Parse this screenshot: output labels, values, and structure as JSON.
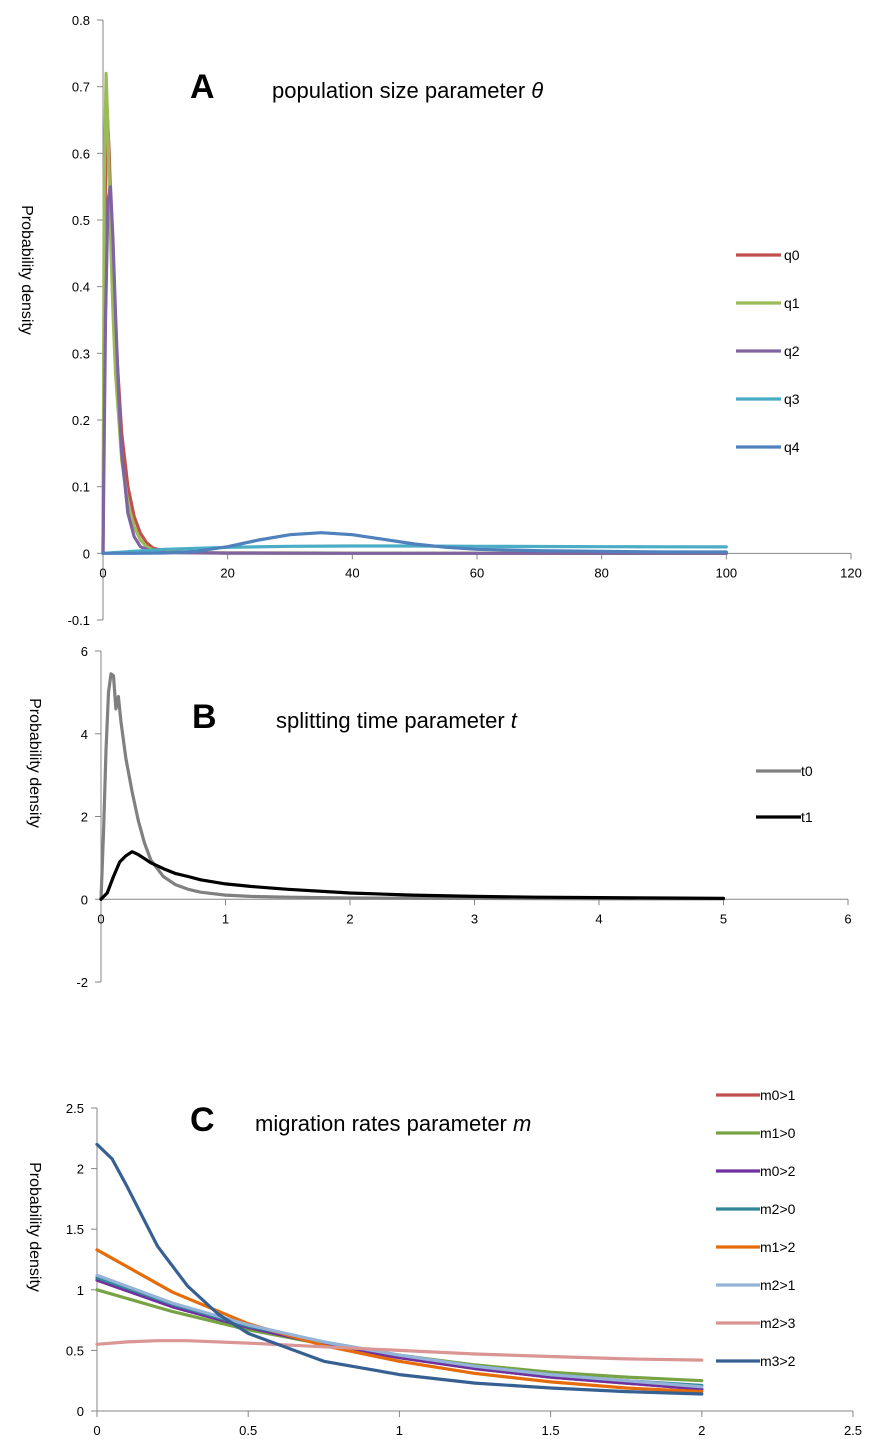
{
  "chart_data": [
    {
      "type": "line",
      "panel_letter": "A",
      "title_text": "population size parameter ",
      "title_symbol": "θ",
      "xlabel": "",
      "ylabel": "Probability density",
      "xlim": [
        0,
        120
      ],
      "ylim": [
        -0.1,
        0.8
      ],
      "xticks": [
        0,
        20,
        40,
        60,
        80,
        100,
        120
      ],
      "yticks": [
        -0.1,
        0,
        0.1,
        0.2,
        0.3,
        0.4,
        0.5,
        0.6,
        0.7,
        0.8
      ],
      "legend_position": "right",
      "series": [
        {
          "name": "q0",
          "color": "#c0504d",
          "x": [
            0,
            0.3,
            0.6,
            1,
            1.5,
            2,
            3,
            4,
            5,
            6,
            7,
            8,
            10,
            15,
            20,
            40,
            60,
            80,
            100
          ],
          "y": [
            0,
            0.5,
            0.68,
            0.6,
            0.45,
            0.33,
            0.18,
            0.1,
            0.055,
            0.03,
            0.016,
            0.008,
            0.003,
            0.001,
            0.0005,
            0.0003,
            0.0002,
            0.0001,
            0.0001
          ]
        },
        {
          "name": "q1",
          "color": "#9bbb59",
          "x": [
            0,
            0.2,
            0.5,
            0.8,
            1.2,
            1.6,
            2,
            3,
            4,
            5,
            6,
            7,
            8,
            10,
            15,
            20,
            40,
            60,
            80,
            100
          ],
          "y": [
            0,
            0.55,
            0.72,
            0.63,
            0.48,
            0.36,
            0.27,
            0.14,
            0.075,
            0.04,
            0.02,
            0.01,
            0.005,
            0.002,
            0.001,
            0.0005,
            0.0003,
            0.0002,
            0.0001,
            0.0001
          ]
        },
        {
          "name": "q2",
          "color": "#8064a2",
          "x": [
            0,
            0.4,
            0.8,
            1.2,
            1.6,
            2,
            2.5,
            3,
            4,
            5,
            6,
            8,
            10,
            20,
            40,
            60,
            80,
            100
          ],
          "y": [
            0,
            0.35,
            0.53,
            0.55,
            0.47,
            0.36,
            0.24,
            0.15,
            0.06,
            0.025,
            0.01,
            0.002,
            0.001,
            0.0003,
            0.0001,
            0.0001,
            0.0001,
            0.0001
          ]
        },
        {
          "name": "q3",
          "color": "#4bacc6",
          "x": [
            0,
            10,
            20,
            30,
            40,
            50,
            60,
            70,
            80,
            90,
            100
          ],
          "y": [
            0,
            0.006,
            0.009,
            0.0105,
            0.011,
            0.011,
            0.0105,
            0.0102,
            0.01,
            0.0098,
            0.0097
          ]
        },
        {
          "name": "q4",
          "color": "#4f81bd",
          "x": [
            0,
            5,
            10,
            15,
            20,
            25,
            30,
            35,
            40,
            45,
            50,
            55,
            60,
            70,
            80,
            90,
            100
          ],
          "y": [
            0,
            0,
            0.0005,
            0.003,
            0.01,
            0.02,
            0.028,
            0.031,
            0.028,
            0.021,
            0.014,
            0.009,
            0.006,
            0.004,
            0.003,
            0.002,
            0.002
          ]
        }
      ]
    },
    {
      "type": "line",
      "panel_letter": "B",
      "title_text": "splitting time parameter ",
      "title_symbol": "t",
      "xlabel": "",
      "ylabel": "Probability density",
      "xlim": [
        0,
        6
      ],
      "ylim": [
        -2,
        6
      ],
      "xticks": [
        0,
        1,
        2,
        3,
        4,
        5,
        6
      ],
      "yticks": [
        -2,
        0,
        2,
        4,
        6
      ],
      "legend_position": "right",
      "series": [
        {
          "name": "t0",
          "color": "#808080",
          "x": [
            0,
            0.02,
            0.04,
            0.06,
            0.08,
            0.1,
            0.12,
            0.14,
            0.16,
            0.2,
            0.25,
            0.3,
            0.35,
            0.4,
            0.5,
            0.6,
            0.7,
            0.8,
            1.0,
            1.2,
            1.5,
            2.0,
            3.0,
            4.0,
            5.0
          ],
          "y": [
            0,
            1.6,
            3.6,
            5.0,
            5.45,
            5.4,
            4.6,
            4.9,
            4.3,
            3.4,
            2.6,
            1.9,
            1.35,
            0.95,
            0.55,
            0.35,
            0.24,
            0.17,
            0.1,
            0.07,
            0.05,
            0.03,
            0.02,
            0.01,
            0.01
          ]
        },
        {
          "name": "t1",
          "color": "#000000",
          "x": [
            0,
            0.05,
            0.1,
            0.15,
            0.2,
            0.25,
            0.3,
            0.35,
            0.4,
            0.5,
            0.6,
            0.7,
            0.8,
            1.0,
            1.2,
            1.5,
            2.0,
            2.5,
            3.0,
            3.5,
            4.0,
            4.5,
            5.0
          ],
          "y": [
            0,
            0.15,
            0.55,
            0.9,
            1.05,
            1.15,
            1.08,
            0.98,
            0.88,
            0.74,
            0.62,
            0.55,
            0.47,
            0.37,
            0.31,
            0.24,
            0.15,
            0.1,
            0.07,
            0.05,
            0.04,
            0.03,
            0.02
          ]
        }
      ]
    },
    {
      "type": "line",
      "panel_letter": "C",
      "title_text": "migration rates parameter ",
      "title_symbol": "m",
      "xlabel": "",
      "ylabel": "Probability density",
      "xlim": [
        0,
        2.5
      ],
      "ylim": [
        0,
        2.5
      ],
      "xticks": [
        0,
        0.5,
        1,
        1.5,
        2,
        2.5
      ],
      "yticks": [
        0,
        0.5,
        1,
        1.5,
        2,
        2.5
      ],
      "legend_position": "right",
      "series": [
        {
          "name": "m0>1",
          "color": "#c0504d",
          "x": [
            0,
            0.25,
            0.5,
            0.75,
            1,
            1.25,
            1.5,
            1.75,
            2
          ],
          "y": [
            1.08,
            0.86,
            0.69,
            0.55,
            0.44,
            0.35,
            0.28,
            0.23,
            0.18
          ]
        },
        {
          "name": "m1>0",
          "color": "#77a343",
          "x": [
            0,
            0.25,
            0.5,
            0.75,
            1,
            1.25,
            1.5,
            1.75,
            2
          ],
          "y": [
            1.0,
            0.82,
            0.67,
            0.55,
            0.46,
            0.38,
            0.32,
            0.28,
            0.25
          ]
        },
        {
          "name": "m0>2",
          "color": "#7030a0",
          "x": [
            0,
            0.25,
            0.5,
            0.75,
            1,
            1.25,
            1.5,
            1.75,
            2
          ],
          "y": [
            1.08,
            0.86,
            0.69,
            0.55,
            0.44,
            0.35,
            0.28,
            0.23,
            0.18
          ]
        },
        {
          "name": "m2>0",
          "color": "#31869b",
          "x": [
            0,
            0.25,
            0.5,
            0.75,
            1,
            1.25,
            1.5,
            1.75,
            2
          ],
          "y": [
            1.1,
            0.88,
            0.7,
            0.57,
            0.46,
            0.37,
            0.3,
            0.25,
            0.21
          ]
        },
        {
          "name": "m1>2",
          "color": "#e46c0a",
          "x": [
            0,
            0.25,
            0.5,
            0.75,
            1,
            1.25,
            1.5,
            1.75,
            2
          ],
          "y": [
            1.33,
            0.98,
            0.72,
            0.54,
            0.41,
            0.31,
            0.24,
            0.19,
            0.16
          ]
        },
        {
          "name": "m2>1",
          "color": "#95b3d7",
          "x": [
            0,
            0.25,
            0.5,
            0.75,
            1,
            1.25,
            1.5,
            1.75,
            2
          ],
          "y": [
            1.12,
            0.89,
            0.71,
            0.57,
            0.46,
            0.37,
            0.3,
            0.25,
            0.2
          ]
        },
        {
          "name": "m2>3",
          "color": "#d99694",
          "x": [
            0,
            0.1,
            0.2,
            0.3,
            0.5,
            0.75,
            1,
            1.25,
            1.5,
            1.75,
            2
          ],
          "y": [
            0.55,
            0.57,
            0.58,
            0.58,
            0.56,
            0.53,
            0.5,
            0.47,
            0.45,
            0.43,
            0.42
          ]
        },
        {
          "name": "m3>2",
          "color": "#376092",
          "x": [
            0,
            0.05,
            0.1,
            0.2,
            0.3,
            0.4,
            0.5,
            0.75,
            1,
            1.25,
            1.5,
            1.75,
            2
          ],
          "y": [
            2.2,
            2.08,
            1.85,
            1.36,
            1.03,
            0.8,
            0.64,
            0.41,
            0.3,
            0.23,
            0.19,
            0.16,
            0.14
          ]
        }
      ]
    }
  ]
}
